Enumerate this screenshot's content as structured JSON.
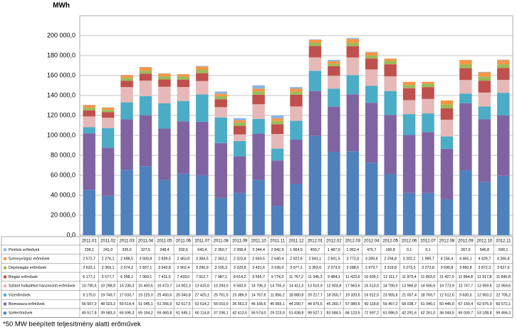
{
  "chart_data": {
    "type": "stacked-bar",
    "y_axis_label": "MWh",
    "footnote": "*50 MW beépített teljesítmény alatti erőművek",
    "categories": [
      "2011.01",
      "2011.02",
      "2011.03",
      "2011.04",
      "2011.05",
      "2011.06",
      "2011.07",
      "2011.08",
      "2011.09",
      "2011.10",
      "2011.11",
      "2011.12",
      "2012.01",
      "2012.02",
      "2012.03",
      "2012.04",
      "2012.05",
      "2012.06",
      "2012.07",
      "2012.08",
      "2012.09",
      "2012.10",
      "2012.11"
    ],
    "ylim": [
      0,
      220000
    ],
    "yticks": [
      {
        "value": 0,
        "label": "0,0"
      },
      {
        "value": 20000,
        "label": "20 000,0"
      },
      {
        "value": 40000,
        "label": "40 000,0"
      },
      {
        "value": 60000,
        "label": "60 000,0"
      },
      {
        "value": 80000,
        "label": "80 000,0"
      },
      {
        "value": 100000,
        "label": "100 000,0"
      },
      {
        "value": 120000,
        "label": "120 000,0"
      },
      {
        "value": 140000,
        "label": "140 000,0"
      },
      {
        "value": 160000,
        "label": "160 000,0"
      },
      {
        "value": 180000,
        "label": "180 000,0"
      },
      {
        "value": 200000,
        "label": "200 000,0"
      }
    ],
    "grid": true,
    "series": [
      {
        "name": "Pirolízis erőművek",
        "color": "#8eb4e3",
        "values": [
          238.1,
          241.0,
          326.0,
          327.5,
          248.4,
          202.6,
          643.4,
          2350.7,
          2268.4,
          3344.4,
          2842.9,
          1664.5,
          459.7,
          1487.9,
          1062.4,
          476.7,
          160.8,
          0.1,
          0.1,
          null,
          267.0,
          546.8,
          590.1
        ],
        "value_labels": [
          "238,1",
          "241,0",
          "326,0",
          "327,5",
          "248,4",
          "202,6",
          "643,4",
          "2 350,7",
          "2 268,4",
          "3 344,4",
          "2 842,9",
          "1 664,5",
          "459,7",
          "1 487,9",
          "1 062,4",
          "476,7",
          "160,8",
          "0,1",
          "0,1",
          null,
          "267,0",
          "546,8",
          "590,1"
        ]
      },
      {
        "name": "Szennyvízgáz erőművek",
        "color": "#f79646",
        "values": [
          2572.7,
          2276.1,
          2698.5,
          3500.8,
          2839.5,
          2463.8,
          3384.5,
          2343.1,
          2323.4,
          2693.5,
          2640.4,
          2922.6,
          2841.1,
          2601.5,
          3772.8,
          3289.6,
          2294.8,
          3202.2,
          1995.7,
          4156.4,
          4465.1,
          4429.7,
          4266.8
        ],
        "value_labels": [
          "2 572,7",
          "2 276,1",
          "2 698,5",
          "3 500,8",
          "2 839,5",
          "2 463,8",
          "3 384,5",
          "2 343,1",
          "2 323,4",
          "2 693,5",
          "2 640,4",
          "2 922,6",
          "2 841,1",
          "2 601,5",
          "3 772,8",
          "3 289,6",
          "2 294,8",
          "3 202,2",
          "1 995,7",
          "4 156,4",
          "4 465,1",
          "4 429,7",
          "4 266,8"
        ]
      },
      {
        "name": "Depóniagáz erőművek",
        "color": "#9bbb59",
        "values": [
          2622.1,
          2369.1,
          2974.2,
          2837.1,
          3043.8,
          2902.4,
          3290.9,
          3105.3,
          3229.8,
          3431.6,
          3199.0,
          3077.1,
          3353.0,
          2373.9,
          3288.6,
          2979.7,
          3319.8,
          3273.3,
          3273.8,
          3690.8,
          3660.8,
          3872.3,
          3637.6
        ],
        "value_labels": [
          "2 622,1",
          "2 369,1",
          "2 974,2",
          "2 837,1",
          "3 043,8",
          "2 902,4",
          "3 290,9",
          "3 105,3",
          "3 229,8",
          "3 431,6",
          "3 199,0",
          "3 077,1",
          "3 353,0",
          "2 373,9",
          "3 288,6",
          "2 979,7",
          "3 319,8",
          "3 273,3",
          "3 273,8",
          "3 690,8",
          "3 660,8",
          "3 872,3",
          "3 637,6"
        ]
      },
      {
        "name": "Biogáz erőművek",
        "color": "#c0504d",
        "values": [
          6177.1,
          5577.7,
          6358.1,
          7069.1,
          7411.9,
          7418.0,
          7912.7,
          7987.1,
          8614.2,
          9555.7,
          9774.3,
          11767.2,
          11345.3,
          9484.1,
          11423.6,
          10939.1,
          12111.7,
          11973.4,
          11863.0,
          11427.0,
          11864.8,
          11917.8,
          11845.8
        ],
        "value_labels": [
          "6 177,1",
          "5 577,7",
          "6 358,1",
          "7 069,1",
          "7 411,9",
          "7 418,0",
          "7 912,7",
          "7 987,1",
          "8 614,2",
          "9 555,7",
          "9 774,3",
          "11 767,2",
          "11 345,3",
          "9 484,1",
          "11 423,6",
          "10 939,1",
          "12 111,7",
          "11 973,4",
          "11 863,0",
          "11 427,0",
          "11 864,8",
          "11 917,8",
          "11 845,8"
        ]
      },
      {
        "name": "Szilárd hulladékot hasznosító erőművek",
        "color": "#e6b9b8",
        "values": [
          10790.6,
          10298.9,
          15236.3,
          15400.6,
          16473.7,
          14002.3,
          13415.6,
          10293.0,
          6583.9,
          14706.3,
          14705.3,
          14411.3,
          13510.9,
          12903.8,
          17563.6,
          16513.0,
          14700.0,
          13966.8,
          14506.6,
          16773.9,
          13747.7,
          13959.6,
          12959.6
        ],
        "value_labels": [
          "10 790,6",
          "10 298,9",
          "15 236,3",
          "15 400,6",
          "16 473,7",
          "14 002,3",
          "13 415,6",
          "10 293,0",
          "6 583,9",
          "14 706,3",
          "14 705,3",
          "14 411,3",
          "13 510,9",
          "12 903,8",
          "17 563,6",
          "16 513,0",
          "14 700,0",
          "13 966,8",
          "14 506,6",
          "16 773,9",
          "13 747,7",
          "13 959,6",
          "12 959,6"
        ]
      },
      {
        "name": "Vízerőművek",
        "color": "#4bacc6",
        "values": [
          6170.0,
          19749.7,
          17033.7,
          19225.0,
          25450.6,
          20343.8,
          27425.1,
          25761.5,
          15386.9,
          14767.6,
          11856.2,
          18880.8,
          20217.7,
          18050.7,
          19320.5,
          16912.5,
          23955.6,
          21007.4,
          18769.7,
          12512.6,
          9630.6,
          12903.2,
          22705.2
        ],
        "value_labels": [
          "6 170,0",
          "19 749,7",
          "17 033,7",
          "19 225,0",
          "25 450,6",
          "20 343,8",
          "27 425,1",
          "25 761,5",
          "15 386,9",
          "14 767,6",
          "11 856,2",
          "18 880,8",
          "20 217,7",
          "18 050,7",
          "19 320,5",
          "16 912,5",
          "23 955,6",
          "21 007,4",
          "18 769,7",
          "12 512,6",
          "9 630,6",
          "12 903,2",
          "22 705,2"
        ]
      },
      {
        "name": "Biomassza erőművek",
        "color": "#8064a2",
        "values": [
          56507.3,
          48023.3,
          50514.4,
          51045.1,
          51356.9,
          52617.5,
          53514.2,
          55010.0,
          36561.3,
          46166.6,
          45665.1,
          44290.7,
          44975.5,
          45260.7,
          57080.6,
          60118.8,
          59457.2,
          58038.7,
          61040.1,
          50445.0,
          67150.4,
          62975.9,
          60572.1
        ],
        "value_labels": [
          "56 507,3",
          "48 023,3",
          "50 514,4",
          "51 045,1",
          "51 356,9",
          "52 617,5",
          "53 514,2",
          "55 010,0",
          "36 561,3",
          "46 166,6",
          "45 665,1",
          "44 290,7",
          "44 975,5",
          "45 260,7",
          "57 080,6",
          "60 118,8",
          "59 457,2",
          "58 038,7",
          "61 040,1",
          "50 445,0",
          "67 150,4",
          "62 975,9",
          "60 572,1"
        ]
      },
      {
        "name": "Szélerőművek",
        "color": "#4f81bd",
        "values": [
          45517.8,
          39583.3,
          65596.3,
          69194.2,
          55460.8,
          61545.1,
          60114.8,
          37236.1,
          42413.5,
          55574.0,
          29223.9,
          51438.8,
          99527.1,
          83584.5,
          84123.5,
          72597.2,
          61086.0,
          42291.6,
          42261.0,
          36044.5,
          65030.7,
          53108.8,
          59456.3
        ],
        "value_labels": [
          "45 517,8",
          "39 583,3",
          "65 596,3",
          "69 194,2",
          "55 460,8",
          "61 545,1",
          "60 114,8",
          "37 236,1",
          "42 413,5",
          "55 574,0",
          "29 223,9",
          "51 438,8",
          "99 527,1",
          "83 584,5",
          "84 123,5",
          "72 597,2",
          "61 086,0",
          "42 291,6",
          "42 261,0",
          "36 044,5",
          "65 030,7",
          "53 108,8",
          "59 456,3"
        ]
      }
    ]
  }
}
